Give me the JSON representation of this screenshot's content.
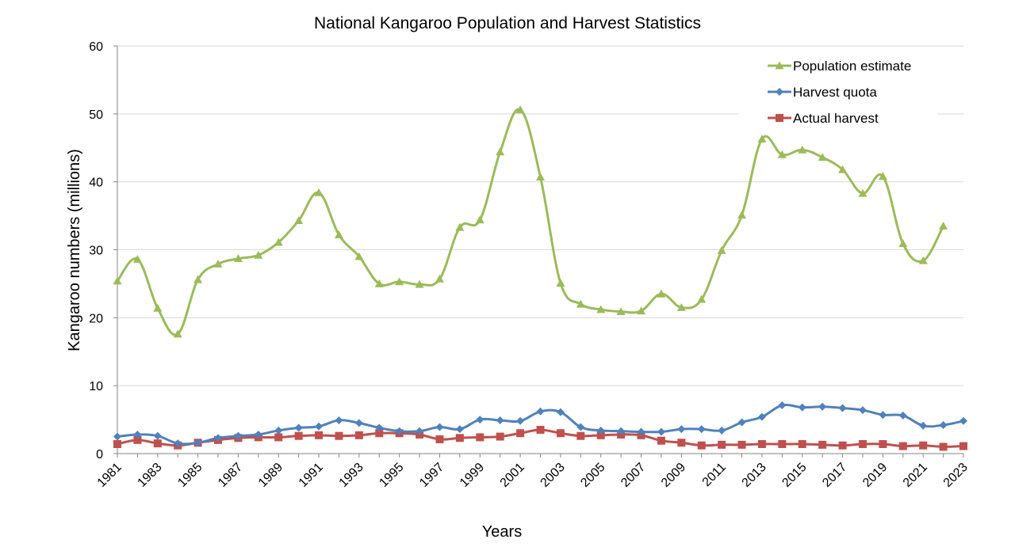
{
  "chart_data": {
    "type": "line",
    "title": "National Kangaroo Population and Harvest Statistics",
    "xlabel": "Years",
    "ylabel": "Kangaroo numbers  (millions)",
    "ylim": [
      0,
      60
    ],
    "yticks": [
      0,
      10,
      20,
      30,
      40,
      50,
      60
    ],
    "x": [
      1981,
      1982,
      1983,
      1984,
      1985,
      1986,
      1987,
      1988,
      1989,
      1990,
      1991,
      1992,
      1993,
      1994,
      1995,
      1996,
      1997,
      1998,
      1999,
      2000,
      2001,
      2002,
      2003,
      2004,
      2005,
      2006,
      2007,
      2008,
      2009,
      2010,
      2011,
      2012,
      2013,
      2014,
      2015,
      2016,
      2017,
      2018,
      2019,
      2020,
      2021,
      2022,
      2023
    ],
    "xtick_labels": [
      "1981",
      "1983",
      "1985",
      "1987",
      "1989",
      "1991",
      "1993",
      "1995",
      "1997",
      "1999",
      "2001",
      "2003",
      "2005",
      "2007",
      "2009",
      "2011",
      "2013",
      "2015",
      "2017",
      "2019",
      "2021",
      "2023"
    ],
    "grid": "horizontal",
    "legend_position": "top-right",
    "series": [
      {
        "name": "Population estimate",
        "color": "#9BBB59",
        "marker": "triangle",
        "values": [
          25.4,
          28.6,
          21.4,
          17.6,
          25.6,
          27.9,
          28.7,
          29.2,
          31.1,
          34.3,
          38.4,
          32.2,
          29.0,
          25.0,
          25.3,
          24.9,
          25.7,
          33.3,
          34.4,
          44.4,
          50.6,
          40.7,
          25.1,
          22.0,
          21.2,
          20.9,
          21.0,
          23.5,
          21.5,
          22.7,
          29.9,
          35.1,
          46.3,
          44.0,
          44.7,
          43.6,
          41.8,
          38.3,
          40.8,
          30.9,
          28.4,
          33.5,
          null
        ]
      },
      {
        "name": "Harvest quota",
        "color": "#4F81BD",
        "marker": "diamond",
        "values": [
          2.5,
          2.8,
          2.6,
          1.5,
          1.6,
          2.3,
          2.6,
          2.8,
          3.4,
          3.8,
          4.0,
          4.9,
          4.5,
          3.8,
          3.3,
          3.3,
          3.9,
          3.6,
          5.0,
          4.9,
          4.8,
          6.2,
          6.1,
          3.9,
          3.4,
          3.3,
          3.2,
          3.2,
          3.6,
          3.6,
          3.4,
          4.6,
          5.4,
          7.1,
          6.8,
          6.9,
          6.7,
          6.4,
          5.7,
          5.6,
          4.1,
          4.2,
          4.8
        ]
      },
      {
        "name": "Actual harvest",
        "color": "#C0504D",
        "marker": "square",
        "values": [
          1.4,
          2.0,
          1.5,
          1.2,
          1.6,
          2.0,
          2.3,
          2.4,
          2.4,
          2.6,
          2.7,
          2.6,
          2.7,
          3.0,
          3.0,
          2.8,
          2.1,
          2.3,
          2.4,
          2.5,
          3.0,
          3.5,
          3.0,
          2.6,
          2.7,
          2.8,
          2.7,
          1.9,
          1.6,
          1.2,
          1.3,
          1.3,
          1.4,
          1.4,
          1.4,
          1.3,
          1.2,
          1.4,
          1.4,
          1.1,
          1.2,
          1.0,
          1.1
        ]
      }
    ]
  }
}
